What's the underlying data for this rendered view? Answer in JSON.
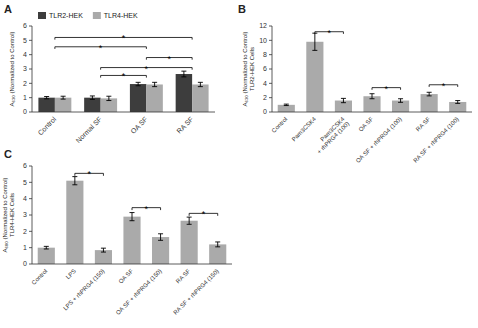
{
  "chart_data": [
    {
      "type": "bar",
      "title": "A",
      "categories": [
        "Control",
        "Normal SF",
        "OA SF",
        "RA SF"
      ],
      "series": [
        {
          "name": "TLR2-HEK",
          "color": "#3d3d3d",
          "values": [
            1.0,
            1.0,
            1.95,
            2.65
          ],
          "errors": [
            0.08,
            0.12,
            0.12,
            0.2
          ]
        },
        {
          "name": "TLR4-HEK",
          "color": "#aaaaaa",
          "values": [
            1.0,
            0.95,
            1.92,
            1.92
          ],
          "errors": [
            0.1,
            0.15,
            0.15,
            0.15
          ]
        }
      ],
      "ylabel": "A₆₃₀ (Normalized to Control)",
      "ylim": [
        0,
        6
      ],
      "yticks": [
        0,
        1,
        2,
        3,
        4,
        5,
        6
      ],
      "grid": false,
      "legend": "upper left",
      "annotations": [
        {
          "text": "*",
          "x1": "Normal SF",
          "x2": "OA SF",
          "y": 2.55
        },
        {
          "text": "*",
          "x1": "Normal SF",
          "x2": "RA SF",
          "y": 3.1
        },
        {
          "text": "*",
          "x1": "OA SF",
          "x2": "RA SF",
          "y": 3.8
        },
        {
          "text": "*",
          "x1": "Control",
          "x2": "OA SF",
          "y": 4.55
        },
        {
          "text": "*",
          "x1": "Control",
          "x2": "RA SF",
          "y": 5.2
        }
      ]
    },
    {
      "type": "bar",
      "title": "B",
      "categories": [
        "Control",
        "Pam3CSK4",
        "Pam3CSK4\n+ rhPRG4 (100)",
        "OA SF",
        "OA SF + rhPRG4 (100)",
        "RA SF",
        "RA SF + rhPRG4 (100)"
      ],
      "values": [
        1.0,
        9.8,
        1.6,
        2.2,
        1.6,
        2.5,
        1.4
      ],
      "errors": [
        0.1,
        1.2,
        0.3,
        0.35,
        0.25,
        0.25,
        0.2
      ],
      "color": "#aaaaaa",
      "ylabel": "A₆₃₀ (Normalized to Control)\nTLR2-HEK Cells",
      "ylim": [
        0,
        12
      ],
      "yticks": [
        0,
        2,
        4,
        6,
        8,
        10,
        12
      ],
      "grid": false,
      "annotations": [
        {
          "text": "*",
          "x1": "Pam3CSK4",
          "x2": "Pam3CSK4\n+ rhPRG4 (100)",
          "y": 11.2
        },
        {
          "text": "*",
          "x1": "OA SF",
          "x2": "OA SF + rhPRG4 (100)",
          "y": 3.4
        },
        {
          "text": "*",
          "x1": "RA SF",
          "x2": "RA SF + rhPRG4 (100)",
          "y": 3.8
        }
      ]
    },
    {
      "type": "bar",
      "title": "C",
      "categories": [
        "Control",
        "LPS",
        "LPS + rhPRG4 (150)",
        "OA SF",
        "OA SF + rhPRG4 (150)",
        "RA SF",
        "RA SF + rhPRG4 (150)"
      ],
      "values": [
        1.0,
        5.1,
        0.85,
        2.9,
        1.65,
        2.65,
        1.2
      ],
      "errors": [
        0.08,
        0.25,
        0.12,
        0.25,
        0.2,
        0.22,
        0.15
      ],
      "color": "#aaaaaa",
      "ylabel": "A₆₀₀ (Normalized to Control)\nTLR4-HEK Cells",
      "ylim": [
        0,
        6
      ],
      "yticks": [
        0,
        1,
        2,
        3,
        4,
        5,
        6
      ],
      "grid": false,
      "annotations": [
        {
          "text": "*",
          "x1": "LPS",
          "x2": "LPS + rhPRG4 (150)",
          "y": 5.55
        },
        {
          "text": "*",
          "x1": "OA SF",
          "x2": "OA SF + rhPRG4 (150)",
          "y": 3.45
        },
        {
          "text": "*",
          "x1": "RA SF",
          "x2": "RA SF + rhPRG4 (150)",
          "y": 3.1
        }
      ]
    }
  ]
}
